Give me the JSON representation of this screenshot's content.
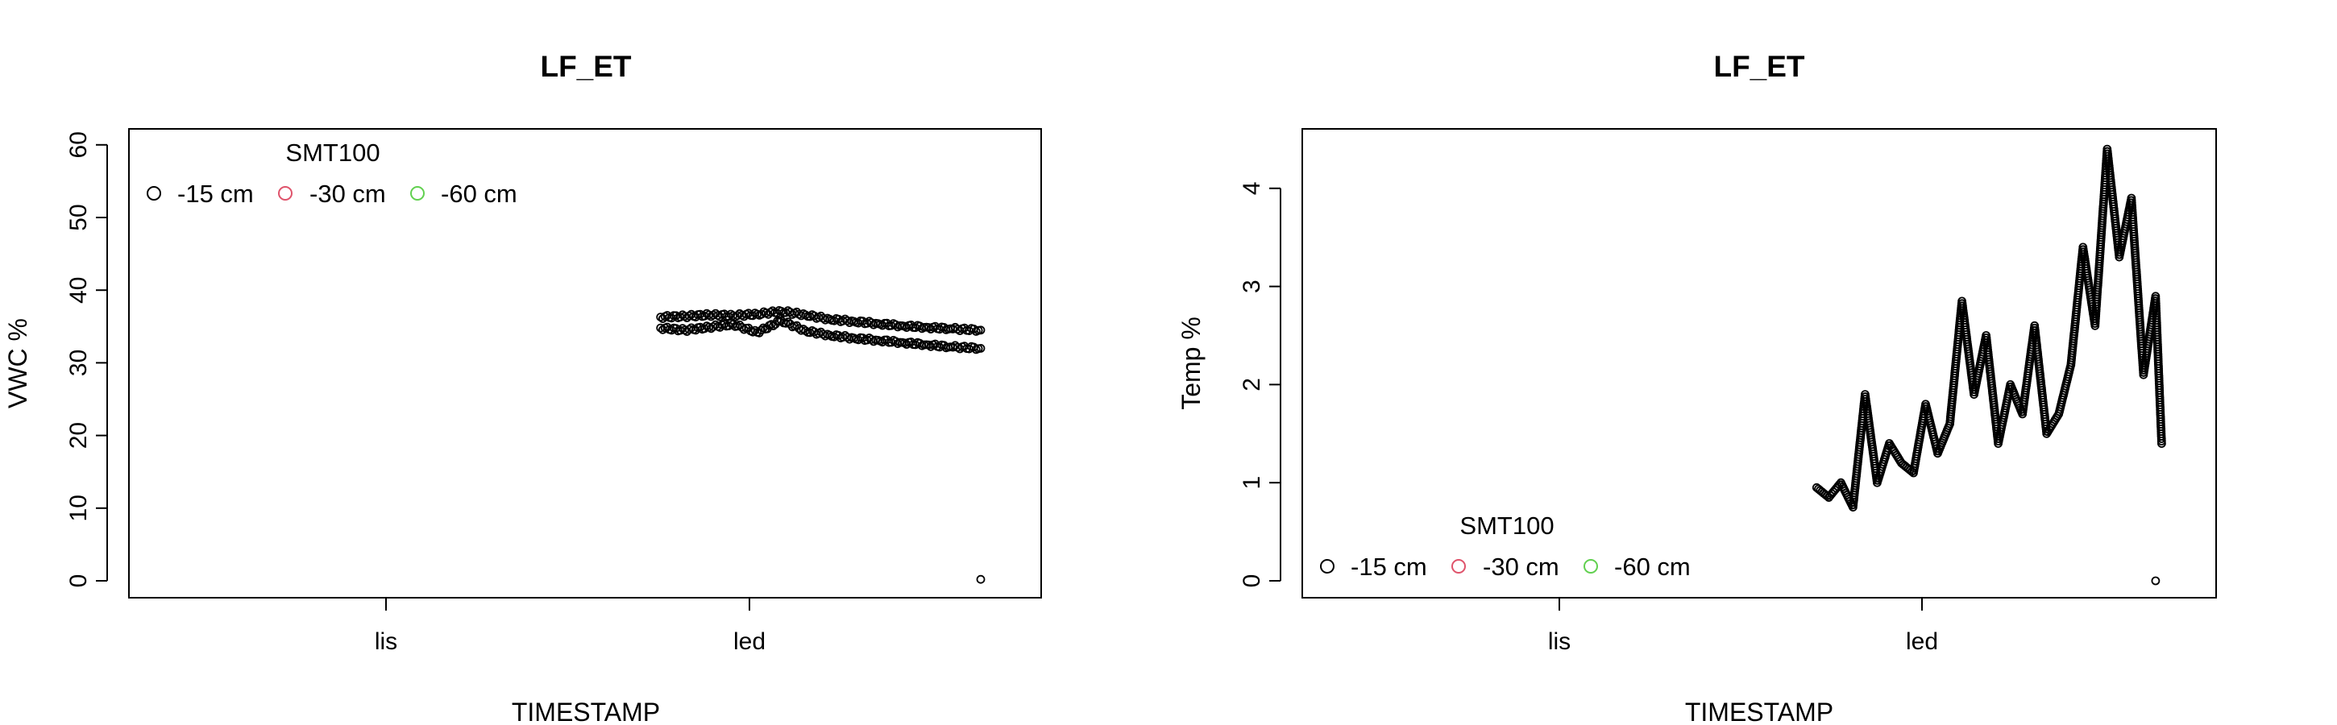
{
  "chart_data": [
    {
      "type": "scatter",
      "title": "LF_ET",
      "xlabel": "TIMESTAMP",
      "ylabel": "VWC %",
      "x_type": "time",
      "x_ticks": [
        "lis",
        "led"
      ],
      "y_ticks": [
        "0",
        "10",
        "20",
        "30",
        "40",
        "50",
        "60"
      ],
      "ylim": [
        -2.5,
        62.5
      ],
      "legend": {
        "title": "SMT100",
        "position": "top-left",
        "entries": [
          {
            "label": "-15 cm",
            "color": "#000000"
          },
          {
            "label": "-30 cm",
            "color": "#DF536B"
          },
          {
            "label": "-60 cm",
            "color": "#61D04F"
          }
        ]
      },
      "series": [
        {
          "name": "-15 cm",
          "color": "#000000",
          "x": [
            "2021-12-06",
            "2021-12-10",
            "2021-12-14",
            "2021-12-18",
            "2021-12-22",
            "2021-12-26",
            "2021-12-30",
            "2022-01-03",
            "2022-01-07",
            "2022-01-11",
            "2022-01-15",
            "2022-01-19",
            "2022-01-23",
            "2022-01-28",
            "2022-01-28"
          ],
          "y": [
            36.3,
            36.4,
            36.6,
            36.5,
            36.7,
            37.1,
            36.6,
            36.0,
            35.7,
            35.4,
            35.1,
            34.9,
            34.7,
            34.5,
            0.2
          ]
        },
        {
          "name": "-15 cm",
          "color": "#000000",
          "x": [
            "2021-12-06",
            "2021-12-10",
            "2021-12-14",
            "2021-12-18",
            "2021-12-22",
            "2021-12-26",
            "2021-12-30",
            "2022-01-03",
            "2022-01-07",
            "2022-01-11",
            "2022-01-15",
            "2022-01-19",
            "2022-01-23",
            "2022-01-28"
          ],
          "y": [
            34.8,
            34.5,
            34.9,
            35.3,
            34.2,
            35.8,
            34.4,
            33.8,
            33.4,
            33.1,
            32.8,
            32.5,
            32.2,
            32.0
          ]
        }
      ]
    },
    {
      "type": "scatter",
      "title": "LF_ET",
      "xlabel": "TIMESTAMP",
      "ylabel": "Temp %",
      "x_type": "time",
      "x_ticks": [
        "lis",
        "led"
      ],
      "y_ticks": [
        "0",
        "1",
        "2",
        "3",
        "4"
      ],
      "ylim": [
        -0.18,
        4.6
      ],
      "legend": {
        "title": "SMT100",
        "position": "bottom-left",
        "entries": [
          {
            "label": "-15 cm",
            "color": "#000000"
          },
          {
            "label": "-30 cm",
            "color": "#DF536B"
          },
          {
            "label": "-60 cm",
            "color": "#61D04F"
          }
        ]
      },
      "series": [
        {
          "name": "-15 cm",
          "color": "#000000",
          "x": [
            "2021-12-03",
            "2021-12-05",
            "2021-12-07",
            "2021-12-09",
            "2021-12-11",
            "2021-12-13",
            "2021-12-15",
            "2021-12-17",
            "2021-12-19",
            "2021-12-21",
            "2021-12-23",
            "2021-12-25",
            "2021-12-27",
            "2021-12-29",
            "2021-12-31",
            "2022-01-02",
            "2022-01-04",
            "2022-01-06",
            "2022-01-08",
            "2022-01-10",
            "2022-01-12",
            "2022-01-14",
            "2022-01-16",
            "2022-01-18",
            "2022-01-20",
            "2022-01-22",
            "2022-01-24",
            "2022-01-26",
            "2022-01-28",
            "2022-01-29"
          ],
          "y": [
            0.95,
            0.85,
            1.0,
            0.75,
            1.9,
            1.0,
            1.4,
            1.2,
            1.1,
            1.8,
            1.3,
            1.6,
            2.85,
            1.9,
            2.5,
            1.4,
            2.0,
            1.7,
            2.6,
            1.5,
            1.7,
            2.2,
            3.4,
            2.6,
            4.4,
            3.3,
            3.9,
            2.1,
            2.9,
            1.4
          ]
        },
        {
          "name": "-15 cm",
          "color": "#000000",
          "x": [
            "2022-01-28"
          ],
          "y": [
            0.0
          ]
        }
      ]
    }
  ]
}
